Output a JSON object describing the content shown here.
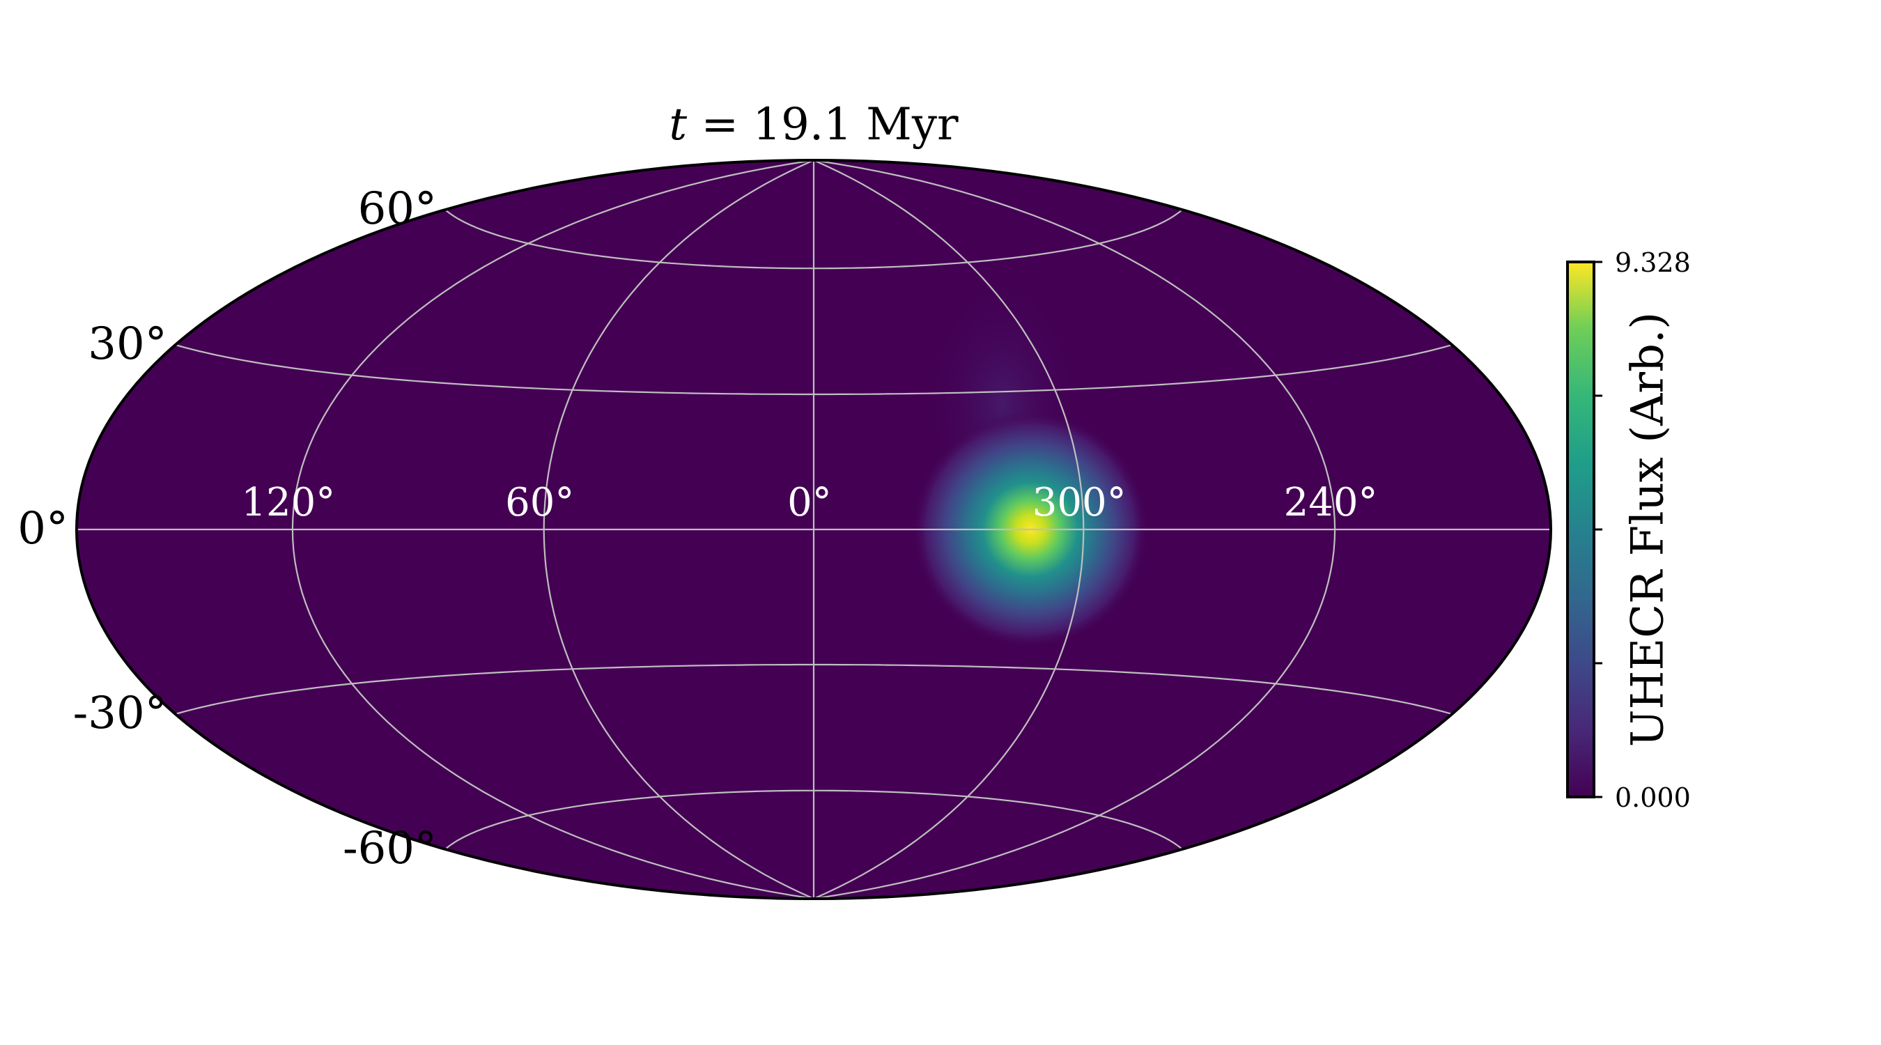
{
  "chart_data": {
    "type": "heatmap",
    "projection": "hammer",
    "title_prefix": "t",
    "title_value": " = 19.1 Myr",
    "lon_tick_labels": [
      {
        "lon": 120,
        "label": "120°"
      },
      {
        "lon": 60,
        "label": "60°"
      },
      {
        "lon": 0,
        "label": "0°"
      },
      {
        "lon": 300,
        "label": "300°"
      },
      {
        "lon": 240,
        "label": "240°"
      }
    ],
    "lat_tick_labels": [
      {
        "lat": 60,
        "label": "60°"
      },
      {
        "lat": 30,
        "label": "30°"
      },
      {
        "lat": 0,
        "label": "0°"
      },
      {
        "lat": -30,
        "label": "-30°"
      },
      {
        "lat": -60,
        "label": "-60°"
      }
    ],
    "grid": true,
    "source": {
      "lon": 312,
      "lat": 0,
      "peak": 9.328
    },
    "colorbar": {
      "label": "UHECR Flux (Arb.)",
      "min": 0.0,
      "max": 9.328,
      "min_label": "0.000",
      "max_label": "9.328",
      "colormap": "viridis"
    }
  },
  "colors": {
    "background_map": "#440154",
    "grid": "#bfbfbf",
    "outline": "#000000"
  }
}
